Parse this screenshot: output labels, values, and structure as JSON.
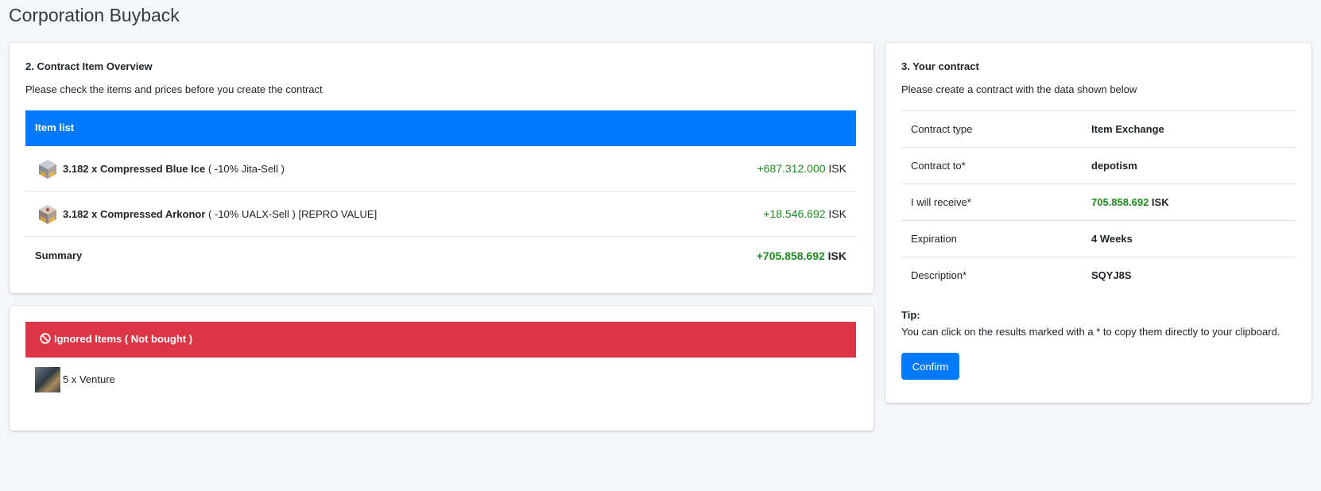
{
  "page": {
    "title": "Corporation Buyback"
  },
  "overview": {
    "heading": "2. Contract Item Overview",
    "subtitle": "Please check the items and prices before you create the contract",
    "list_header": "Item list",
    "items": [
      {
        "qty_name": "3.182 x Compressed Blue Ice",
        "modifier": " ( -10% Jita-Sell )",
        "price": "+687.312.000",
        "currency": " ISK",
        "icon": "ore-cube-icon"
      },
      {
        "qty_name": "3.182 x Compressed Arkonor",
        "modifier": " ( -10% UALX-Sell ) [REPRO VALUE]",
        "price": "+18.546.692",
        "currency": " ISK",
        "icon": "ore-cube-icon"
      }
    ],
    "summary": {
      "label": "Summary",
      "price": "+705.858.692",
      "currency": " ISK"
    }
  },
  "ignored": {
    "header": "Ignored Items ( Not bought )",
    "items": [
      {
        "text": "5 x Venture",
        "icon": "ship-thumbnail"
      }
    ]
  },
  "contract": {
    "heading": "3. Your contract",
    "subtitle": "Please create a contract with the data shown below",
    "rows": [
      {
        "key": "Contract type",
        "value": "Item Exchange"
      },
      {
        "key": "Contract to*",
        "value": "depotism"
      },
      {
        "key": "I will receive*",
        "value": "705.858.692",
        "suffix": " ISK"
      },
      {
        "key": "Expiration",
        "value": "4 Weeks"
      },
      {
        "key": "Description*",
        "value": "SQYJ8S"
      }
    ],
    "tip_title": "Tip:",
    "tip_text": "You can click on the results marked with a * to copy them directly to your clipboard.",
    "confirm_label": "Confirm"
  },
  "colors": {
    "primary": "#007bff",
    "danger": "#dc3545",
    "success": "#208a20"
  }
}
